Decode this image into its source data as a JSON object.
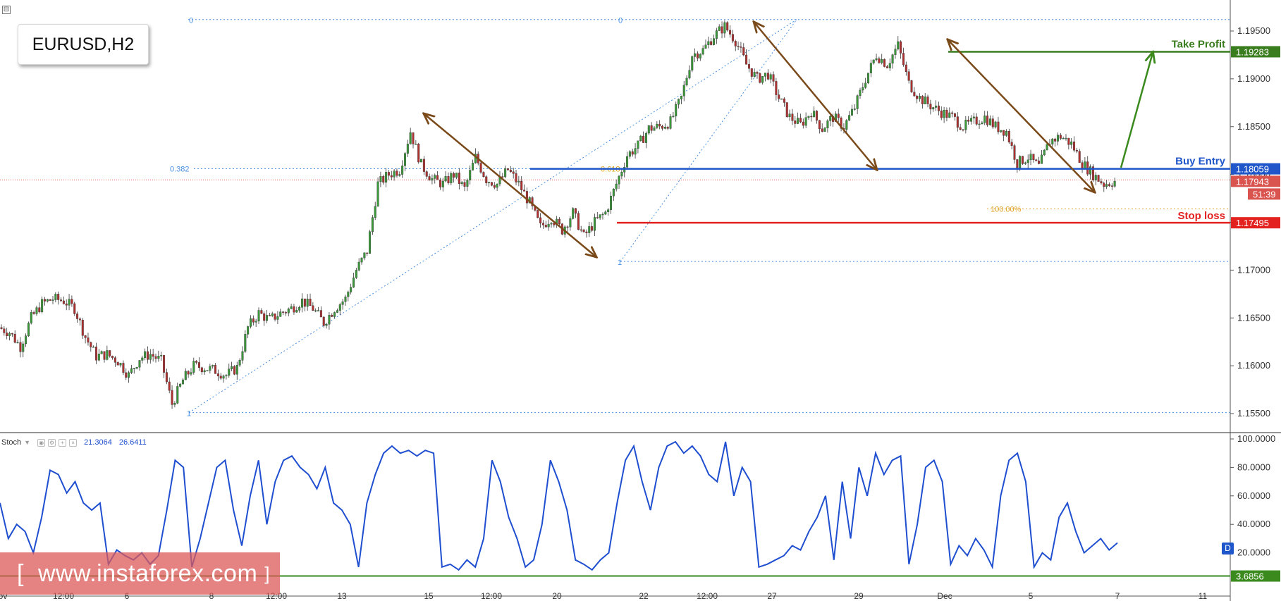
{
  "header": {
    "symbol": "EURUSD,H2",
    "collapse_glyph": "⊟"
  },
  "indicator": {
    "name": "Stoch",
    "value_k": "21.3064",
    "value_d": "26.6411",
    "badge": "D",
    "level_label": "3.6856"
  },
  "annotations": {
    "take_profit": {
      "label": "Take Profit",
      "price": "1.19283",
      "value": 1.19283,
      "color": "#3a7d1e"
    },
    "buy_entry": {
      "label": "Buy Entry",
      "price": "1.18059",
      "value": 1.18059,
      "color": "#1f56c9"
    },
    "stop_loss": {
      "label": "Stop loss",
      "price": "1.17495",
      "value": 1.17495,
      "color": "#e3211f"
    },
    "current": {
      "price": "1.17943",
      "value": 1.17943,
      "timer": "51:39",
      "color": "#d9534f"
    },
    "fib_labels": [
      "0",
      "0",
      "0.382",
      "0.618",
      "1",
      "1",
      "100.00%"
    ]
  },
  "watermark": {
    "text": "www.instaforex.com",
    "brackets": [
      "[",
      "]"
    ]
  },
  "chart_data": [
    {
      "type": "candlestick",
      "symbol": "EURUSD",
      "timeframe": "H2",
      "y_axis": {
        "ticks": [
          "1.19500",
          "1.19000",
          "1.18500",
          "1.18000",
          "1.17500",
          "1.17000",
          "1.16500",
          "1.16000",
          "1.15500"
        ],
        "ylim": [
          1.1535,
          1.1973
        ]
      },
      "x_axis": {
        "ticks": [
          "ov",
          "12:00",
          "6",
          "8",
          "12:00",
          "13",
          "15",
          "12:00",
          "20",
          "22",
          "12:00",
          "27",
          "29",
          "Dec",
          "5",
          "7",
          "11"
        ]
      },
      "approx_close_path": [
        1.164,
        1.1635,
        1.162,
        1.165,
        1.1665,
        1.167,
        1.1668,
        1.166,
        1.163,
        1.161,
        1.1612,
        1.1605,
        1.159,
        1.1608,
        1.1612,
        1.1605,
        1.156,
        1.1585,
        1.16,
        1.1598,
        1.1595,
        1.159,
        1.1598,
        1.164,
        1.1655,
        1.1648,
        1.1655,
        1.166,
        1.1668,
        1.166,
        1.1645,
        1.166,
        1.167,
        1.17,
        1.172,
        1.179,
        1.18,
        1.1805,
        1.1845,
        1.181,
        1.1795,
        1.179,
        1.18,
        1.1785,
        1.1818,
        1.1795,
        1.179,
        1.1805,
        1.179,
        1.177,
        1.1745,
        1.1755,
        1.1742,
        1.176,
        1.1735,
        1.175,
        1.176,
        1.179,
        1.182,
        1.183,
        1.1848,
        1.185,
        1.1855,
        1.188,
        1.1925,
        1.193,
        1.1945,
        1.1955,
        1.194,
        1.1915,
        1.19,
        1.1905,
        1.188,
        1.186,
        1.1852,
        1.1866,
        1.1848,
        1.186,
        1.185,
        1.187,
        1.19,
        1.1925,
        1.1915,
        1.1935,
        1.1895,
        1.188,
        1.1872,
        1.1865,
        1.186,
        1.185,
        1.1855,
        1.186,
        1.185,
        1.1845,
        1.1812,
        1.1818,
        1.1808,
        1.1835,
        1.184,
        1.1832,
        1.1812,
        1.18,
        1.179,
        1.1793
      ],
      "horizontal_levels": [
        1.19283,
        1.18059,
        1.17943,
        1.17495
      ],
      "fib_levels": {
        "top": 1.1962,
        "level_0382": 1.1806,
        "bottom_low": 1.1551,
        "level_1_right": 1.1709,
        "level_100pct": 1.1764
      }
    },
    {
      "type": "line",
      "name": "Stoch",
      "ylim": [
        0,
        100
      ],
      "y_ticks": [
        "100.0000",
        "80.0000",
        "60.0000",
        "40.0000",
        "20.0000"
      ],
      "level": 3.6856,
      "values": [
        55,
        30,
        40,
        35,
        20,
        45,
        78,
        75,
        62,
        70,
        55,
        50,
        55,
        12,
        22,
        18,
        15,
        20,
        12,
        18,
        50,
        85,
        80,
        10,
        30,
        55,
        80,
        85,
        50,
        25,
        60,
        85,
        40,
        70,
        85,
        88,
        80,
        75,
        65,
        80,
        55,
        50,
        40,
        10,
        55,
        75,
        90,
        95,
        90,
        92,
        88,
        92,
        90,
        10,
        12,
        8,
        15,
        10,
        30,
        85,
        70,
        45,
        30,
        10,
        15,
        40,
        85,
        70,
        50,
        15,
        12,
        8,
        15,
        20,
        55,
        85,
        95,
        70,
        50,
        80,
        95,
        98,
        90,
        95,
        88,
        75,
        70,
        98,
        60,
        80,
        70,
        10,
        12,
        15,
        18,
        25,
        22,
        35,
        45,
        60,
        15,
        70,
        30,
        80,
        60,
        90,
        75,
        85,
        88,
        12,
        40,
        80,
        85,
        70,
        12,
        25,
        18,
        30,
        22,
        10,
        60,
        85,
        90,
        70,
        10,
        20,
        15,
        45,
        55,
        35,
        20,
        25,
        30,
        22,
        27
      ]
    }
  ]
}
